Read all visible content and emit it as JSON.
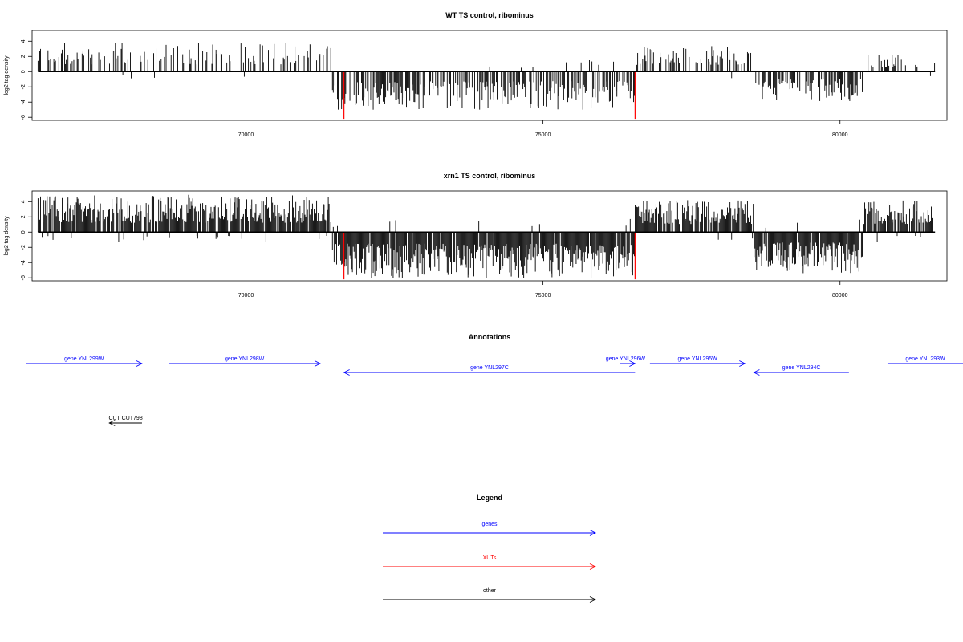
{
  "colors": {
    "genes": "#0000ff",
    "xuts": "#ff0000",
    "other": "#000000"
  },
  "chart_data": [
    {
      "type": "bar",
      "title": "WT TS control, ribominus",
      "ylabel": "log2 tag density",
      "xlim": [
        66400,
        81800
      ],
      "ylim": [
        -6.4,
        5.4
      ],
      "xticks": [
        70000,
        75000,
        80000
      ],
      "yticks": [
        4,
        2,
        0,
        -2,
        -4,
        -6
      ],
      "grid": false,
      "seed": 11,
      "profile": [
        {
          "from": 66500,
          "to": 71450,
          "sign": 1,
          "density": 0.35,
          "max": 3.8
        },
        {
          "from": 71450,
          "to": 76550,
          "sign": -1,
          "density": 0.6,
          "max": 5.0
        },
        {
          "from": 76550,
          "to": 78550,
          "sign": 1,
          "density": 0.4,
          "max": 3.5
        },
        {
          "from": 78550,
          "to": 80400,
          "sign": -1,
          "density": 0.6,
          "max": 3.9
        },
        {
          "from": 80400,
          "to": 81600,
          "sign": 1,
          "density": 0.35,
          "max": 2.4
        }
      ],
      "highlight_bars": [
        {
          "x": 71650,
          "y": -6.2,
          "color": "#ff0000"
        },
        {
          "x": 76550,
          "y": -6.2,
          "color": "#ff0000"
        }
      ]
    },
    {
      "type": "bar",
      "title": "xrn1 TS control, ribominus",
      "ylabel": "log2 tag density",
      "xlim": [
        66400,
        81800
      ],
      "ylim": [
        -6.4,
        5.4
      ],
      "xticks": [
        70000,
        75000,
        80000
      ],
      "yticks": [
        4,
        2,
        0,
        -2,
        -4,
        -6
      ],
      "grid": false,
      "seed": 29,
      "profile": [
        {
          "from": 66500,
          "to": 71450,
          "sign": 1,
          "density": 0.9,
          "max": 4.9
        },
        {
          "from": 71450,
          "to": 76550,
          "sign": -1,
          "density": 0.95,
          "max": 6.1
        },
        {
          "from": 76550,
          "to": 78550,
          "sign": 1,
          "density": 0.9,
          "max": 4.2
        },
        {
          "from": 78550,
          "to": 80400,
          "sign": -1,
          "density": 0.95,
          "max": 5.5
        },
        {
          "from": 80400,
          "to": 81600,
          "sign": 1,
          "density": 0.8,
          "max": 4.2
        }
      ],
      "highlight_bars": [
        {
          "x": 71650,
          "y": -6.2,
          "color": "#ff0000"
        },
        {
          "x": 76550,
          "y": -6.2,
          "color": "#ff0000"
        }
      ]
    }
  ],
  "annotations": {
    "title": "Annotations",
    "features": [
      {
        "label": "gene YNL299W",
        "start": 66300,
        "end": 68250,
        "strand": "+",
        "track": "genes"
      },
      {
        "label": "gene YNL298W",
        "start": 68700,
        "end": 71250,
        "strand": "+",
        "track": "genes"
      },
      {
        "label": "gene YNL297C",
        "start": 71650,
        "end": 76550,
        "strand": "-",
        "track": "genes"
      },
      {
        "label": "gene YNL296W",
        "start": 76300,
        "end": 76550,
        "strand": "+",
        "track": "genes"
      },
      {
        "label": "gene YNL295W",
        "start": 76800,
        "end": 78400,
        "strand": "+",
        "track": "genes"
      },
      {
        "label": "gene YNL294C",
        "start": 78550,
        "end": 80150,
        "strand": "-",
        "track": "genes"
      },
      {
        "label": "gene YNL293W",
        "start": 80800,
        "end": 82500,
        "strand": "+",
        "track": "genes"
      },
      {
        "label": "CUT CUT798",
        "start": 67700,
        "end": 68250,
        "strand": "-",
        "track": "other"
      }
    ]
  },
  "legend": {
    "title": "Legend",
    "items": [
      {
        "label": "genes",
        "color": "#0000ff"
      },
      {
        "label": "XUTs",
        "color": "#ff0000"
      },
      {
        "label": "other",
        "color": "#000000"
      }
    ]
  }
}
